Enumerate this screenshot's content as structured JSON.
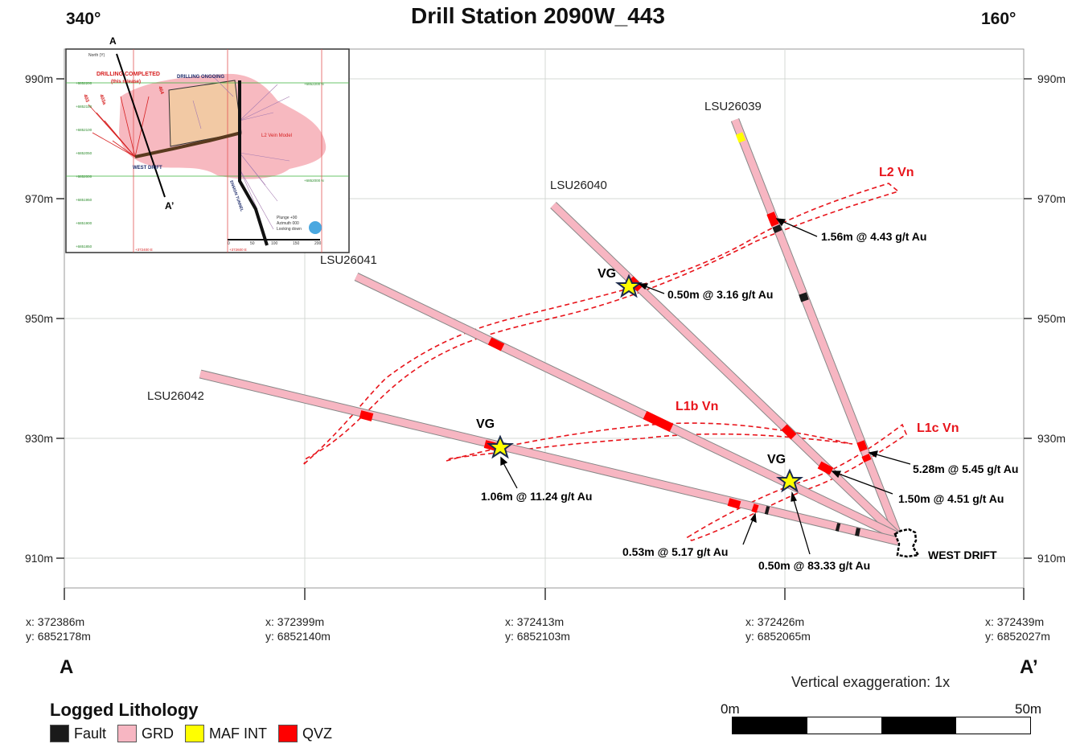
{
  "title": "Drill Station 2090W_443",
  "bearing_left": "340°",
  "bearing_right": "160°",
  "y_axis": {
    "ticks": [
      "990m",
      "970m",
      "950m",
      "930m",
      "910m"
    ],
    "values": [
      990,
      970,
      950,
      930,
      910
    ]
  },
  "x_axis": {
    "ticks": [
      {
        "x": "x: 372386m",
        "y": "y: 6852178m"
      },
      {
        "x": "x: 372399m",
        "y": "y: 6852140m"
      },
      {
        "x": "x: 372413m",
        "y": "y: 6852103m"
      },
      {
        "x": "x: 372426m",
        "y": "y: 6852065m"
      },
      {
        "x": "x: 372439m",
        "y": "y: 6852027m"
      }
    ]
  },
  "section_ends": {
    "start": "A",
    "end": "A’"
  },
  "holes": [
    {
      "id": "LSU26039"
    },
    {
      "id": "LSU26040"
    },
    {
      "id": "LSU26041"
    },
    {
      "id": "LSU26042"
    }
  ],
  "veins": [
    {
      "name": "L2 Vn"
    },
    {
      "name": "L1b Vn"
    },
    {
      "name": "L1c Vn"
    }
  ],
  "intercepts": [
    "1.56m @ 4.43 g/t Au",
    "0.50m @ 3.16 g/t Au",
    "5.28m @ 5.45 g/t Au",
    "1.50m @ 4.51 g/t Au",
    "1.06m @ 11.24 g/t Au",
    "0.53m @ 5.17 g/t Au",
    "0.50m @ 83.33 g/t Au"
  ],
  "vg_label": "VG",
  "drift_label": "WEST DRIFT",
  "vertical_exaggeration": "Vertical exaggeration: 1x",
  "scale": {
    "start": "0m",
    "end": "50m"
  },
  "legend": {
    "title": "Logged Lithology",
    "items": [
      {
        "label": "Fault",
        "color": "#1a1a1a"
      },
      {
        "label": "GRD",
        "color": "#f7b6c2"
      },
      {
        "label": "MAF INT",
        "color": "#ffff00"
      },
      {
        "label": "QVZ",
        "color": "#ff0000"
      }
    ]
  },
  "colors": {
    "grd": "#f7b6c2",
    "qvz": "#ff0000",
    "fault": "#1a1a1a",
    "maf": "#ffff00",
    "vein": "#e8141b",
    "grid": "#cfd8cf"
  },
  "inset": {
    "drilling_completed": "DRILLING COMPLETED",
    "this_release": "(this release)",
    "drilling_ongoing": "DRILLING ONGOING",
    "vein_model": "L2 Vein Model",
    "west_drift": "WEST DRIFT",
    "tunnel": "ENSIGN TUNNEL",
    "section_a": "A",
    "section_a_prime": "A’",
    "north": "North (Y)",
    "hole_labels": [
      "403",
      "403a",
      "464"
    ],
    "plunge": "Plunge +90",
    "azimuth": "Azimuth 000",
    "looking": "Looking down",
    "scale_ticks": [
      "0",
      "50",
      "100",
      "150",
      "200"
    ],
    "northings_left": [
      "+6852200",
      "+6852150",
      "+6852100",
      "+6852050",
      "+6852000",
      "+6851950",
      "+6851900",
      "+6851850"
    ],
    "northings_right": [
      "+6852200 N",
      "+6852000 N"
    ],
    "eastings": [
      "+372400 E",
      "+372600 E"
    ]
  }
}
